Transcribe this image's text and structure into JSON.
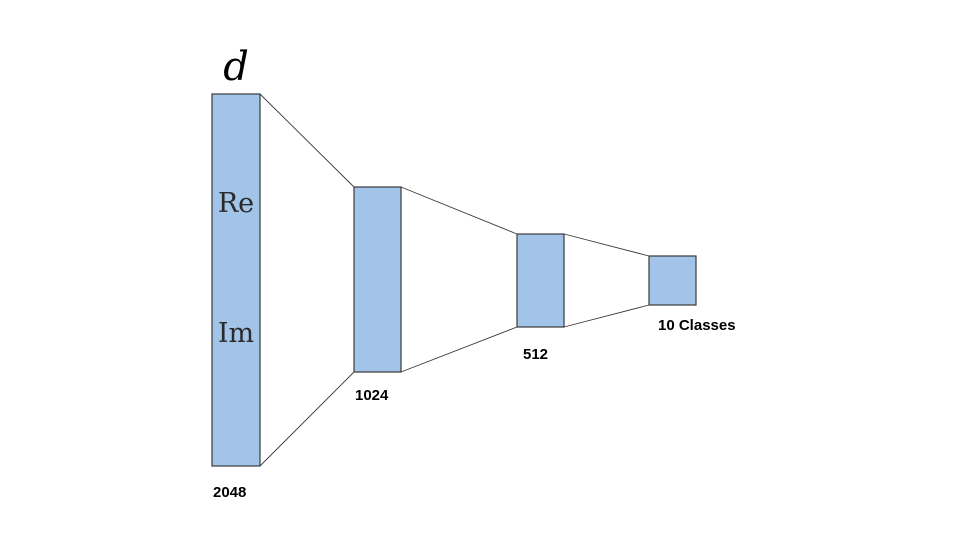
{
  "diagram": {
    "input_symbol": "d",
    "input_components": [
      "Re",
      "Im"
    ],
    "layers": [
      {
        "size_label": "2048"
      },
      {
        "size_label": "1024"
      },
      {
        "size_label": "512"
      },
      {
        "size_label": "10 Classes"
      }
    ]
  }
}
